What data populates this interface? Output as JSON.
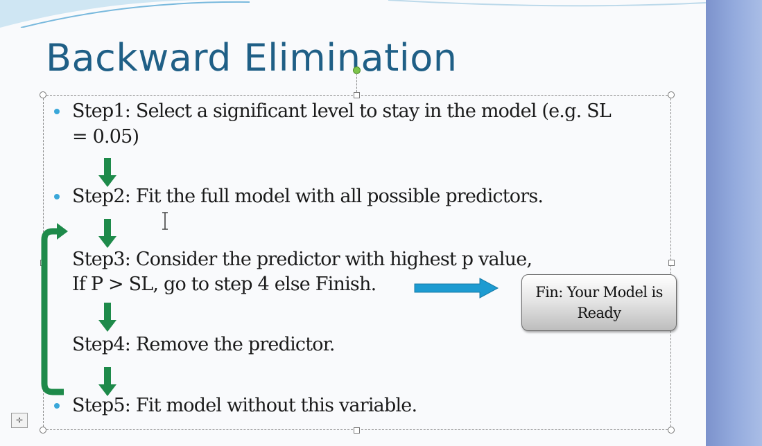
{
  "slide": {
    "title": "Backward Elimination",
    "steps": [
      {
        "line1": "Step1: Select a significant level to stay in the model (e.g. SL",
        "line2": "= 0.05)"
      },
      {
        "line1": "Step2: Fit the full model with all possible predictors."
      },
      {
        "line1": "Step3: Consider the predictor with highest p value,",
        "line2": "If P > SL, go to step 4 else Finish."
      },
      {
        "line1": "Step4: Remove the predictor."
      },
      {
        "line1": "Step5: Fit model without this variable."
      }
    ],
    "finish_box": {
      "text": "Fin: Your Model is Ready"
    }
  },
  "icons": {
    "flow_arrow": "down-arrow-icon",
    "loop": "loop-bracket-arrow-icon",
    "finish_arrow": "right-arrow-icon",
    "cursor": "text-cursor-icon",
    "layout": "autofit-options-icon",
    "layout_glyph": "÷"
  },
  "colors": {
    "title": "#1f5f86",
    "bullet": "#3aa7d9",
    "flow_arrow": "#1e8a4a",
    "finish_arrow": "#1d9bd1"
  }
}
